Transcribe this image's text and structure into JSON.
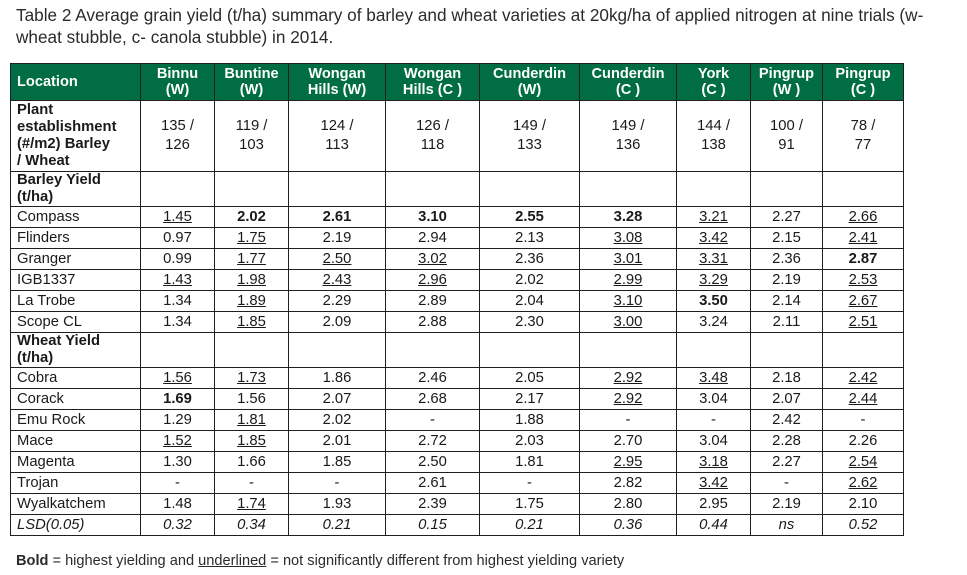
{
  "caption": "Table 2 Average grain yield (t/ha) summary of barley and wheat varieties at 20kg/ha of applied nitrogen at nine trials (w- wheat stubble, c- canola stubble) in 2014.",
  "columns": [
    {
      "line1": "Location",
      "line2": ""
    },
    {
      "line1": "Binnu",
      "line2": "(W)"
    },
    {
      "line1": "Buntine",
      "line2": "(W)"
    },
    {
      "line1": "Wongan",
      "line2": "Hills (W)"
    },
    {
      "line1": "Wongan",
      "line2": "Hills (C )"
    },
    {
      "line1": "Cunderdin",
      "line2": "(W)"
    },
    {
      "line1": "Cunderdin",
      "line2": "(C )"
    },
    {
      "line1": "York",
      "line2": "(C )"
    },
    {
      "line1": "Pingrup",
      "line2": "(W )"
    },
    {
      "line1": "Pingrup",
      "line2": "(C )"
    }
  ],
  "plant": {
    "label_lines": [
      "Plant",
      "establishment",
      "(#/m2) Barley",
      "/ Wheat"
    ],
    "values": [
      [
        "135 /",
        "126"
      ],
      [
        "119 /",
        "103"
      ],
      [
        "124 /",
        "113"
      ],
      [
        "126 /",
        "118"
      ],
      [
        "149 /",
        "133"
      ],
      [
        "149 /",
        "136"
      ],
      [
        "144 /",
        "138"
      ],
      [
        "100 /",
        "91"
      ],
      [
        "78 /",
        "77"
      ]
    ]
  },
  "barley_section": [
    "Barley Yield",
    "(t/ha)"
  ],
  "barley_rows": [
    {
      "name": "Compass",
      "cells": [
        {
          "v": "1.45",
          "s": "u"
        },
        {
          "v": "2.02",
          "s": "b"
        },
        {
          "v": "2.61",
          "s": "b"
        },
        {
          "v": "3.10",
          "s": "b"
        },
        {
          "v": "2.55",
          "s": "b"
        },
        {
          "v": "3.28",
          "s": "b"
        },
        {
          "v": "3.21",
          "s": "u"
        },
        {
          "v": "2.27",
          "s": ""
        },
        {
          "v": "2.66",
          "s": "u"
        }
      ]
    },
    {
      "name": "Flinders",
      "cells": [
        {
          "v": "0.97",
          "s": ""
        },
        {
          "v": "1.75",
          "s": "u"
        },
        {
          "v": "2.19",
          "s": ""
        },
        {
          "v": "2.94",
          "s": ""
        },
        {
          "v": "2.13",
          "s": ""
        },
        {
          "v": "3.08",
          "s": "u"
        },
        {
          "v": "3.42",
          "s": "u"
        },
        {
          "v": "2.15",
          "s": ""
        },
        {
          "v": "2.41",
          "s": "u"
        }
      ]
    },
    {
      "name": "Granger",
      "cells": [
        {
          "v": "0.99",
          "s": ""
        },
        {
          "v": "1.77",
          "s": "u"
        },
        {
          "v": "2.50",
          "s": "u"
        },
        {
          "v": "3.02",
          "s": "u"
        },
        {
          "v": "2.36",
          "s": ""
        },
        {
          "v": "3.01",
          "s": "u"
        },
        {
          "v": "3.31",
          "s": "u"
        },
        {
          "v": "2.36",
          "s": ""
        },
        {
          "v": "2.87",
          "s": "b"
        }
      ]
    },
    {
      "name": "IGB1337",
      "cells": [
        {
          "v": "1.43",
          "s": "u"
        },
        {
          "v": "1.98",
          "s": "u"
        },
        {
          "v": "2.43",
          "s": "u"
        },
        {
          "v": "2.96",
          "s": "u"
        },
        {
          "v": "2.02",
          "s": ""
        },
        {
          "v": "2.99",
          "s": "u"
        },
        {
          "v": "3.29",
          "s": "u"
        },
        {
          "v": "2.19",
          "s": ""
        },
        {
          "v": "2.53",
          "s": "u"
        }
      ]
    },
    {
      "name": "La Trobe",
      "cells": [
        {
          "v": "1.34",
          "s": ""
        },
        {
          "v": "1.89",
          "s": "u"
        },
        {
          "v": "2.29",
          "s": ""
        },
        {
          "v": "2.89",
          "s": ""
        },
        {
          "v": "2.04",
          "s": ""
        },
        {
          "v": "3.10",
          "s": "u"
        },
        {
          "v": "3.50",
          "s": "b"
        },
        {
          "v": "2.14",
          "s": ""
        },
        {
          "v": "2.67",
          "s": "u"
        }
      ]
    },
    {
      "name": "Scope CL",
      "cells": [
        {
          "v": "1.34",
          "s": ""
        },
        {
          "v": "1.85",
          "s": "u"
        },
        {
          "v": "2.09",
          "s": ""
        },
        {
          "v": "2.88",
          "s": ""
        },
        {
          "v": "2.30",
          "s": ""
        },
        {
          "v": "3.00",
          "s": "u"
        },
        {
          "v": "3.24",
          "s": ""
        },
        {
          "v": "2.11",
          "s": ""
        },
        {
          "v": "2.51",
          "s": "u"
        }
      ]
    }
  ],
  "wheat_section": [
    "Wheat Yield",
    "(t/ha)"
  ],
  "wheat_rows": [
    {
      "name": "Cobra",
      "cells": [
        {
          "v": "1.56",
          "s": "u"
        },
        {
          "v": "1.73",
          "s": "u"
        },
        {
          "v": "1.86",
          "s": ""
        },
        {
          "v": "2.46",
          "s": ""
        },
        {
          "v": "2.05",
          "s": ""
        },
        {
          "v": "2.92",
          "s": "u"
        },
        {
          "v": "3.48",
          "s": "u"
        },
        {
          "v": "2.18",
          "s": ""
        },
        {
          "v": "2.42",
          "s": "u"
        }
      ]
    },
    {
      "name": "Corack",
      "cells": [
        {
          "v": "1.69",
          "s": "b"
        },
        {
          "v": "1.56",
          "s": ""
        },
        {
          "v": "2.07",
          "s": ""
        },
        {
          "v": "2.68",
          "s": ""
        },
        {
          "v": "2.17",
          "s": ""
        },
        {
          "v": "2.92",
          "s": "u"
        },
        {
          "v": "3.04",
          "s": ""
        },
        {
          "v": "2.07",
          "s": ""
        },
        {
          "v": "2.44",
          "s": "u"
        }
      ]
    },
    {
      "name": "Emu Rock",
      "cells": [
        {
          "v": "1.29",
          "s": ""
        },
        {
          "v": "1.81",
          "s": "u"
        },
        {
          "v": "2.02",
          "s": ""
        },
        {
          "v": "-",
          "s": ""
        },
        {
          "v": "1.88",
          "s": ""
        },
        {
          "v": "-",
          "s": ""
        },
        {
          "v": "-",
          "s": ""
        },
        {
          "v": "2.42",
          "s": ""
        },
        {
          "v": "-",
          "s": ""
        }
      ]
    },
    {
      "name": "Mace",
      "cells": [
        {
          "v": "1.52",
          "s": "u"
        },
        {
          "v": "1.85",
          "s": "u"
        },
        {
          "v": "2.01",
          "s": ""
        },
        {
          "v": "2.72",
          "s": ""
        },
        {
          "v": "2.03",
          "s": ""
        },
        {
          "v": "2.70",
          "s": ""
        },
        {
          "v": "3.04",
          "s": ""
        },
        {
          "v": "2.28",
          "s": ""
        },
        {
          "v": "2.26",
          "s": ""
        }
      ]
    },
    {
      "name": "Magenta",
      "cells": [
        {
          "v": "1.30",
          "s": ""
        },
        {
          "v": "1.66",
          "s": ""
        },
        {
          "v": "1.85",
          "s": ""
        },
        {
          "v": "2.50",
          "s": ""
        },
        {
          "v": "1.81",
          "s": ""
        },
        {
          "v": "2.95",
          "s": "u"
        },
        {
          "v": "3.18",
          "s": "u"
        },
        {
          "v": "2.27",
          "s": ""
        },
        {
          "v": "2.54",
          "s": "u"
        }
      ]
    },
    {
      "name": "Trojan",
      "cells": [
        {
          "v": "-",
          "s": ""
        },
        {
          "v": "-",
          "s": ""
        },
        {
          "v": "-",
          "s": ""
        },
        {
          "v": "2.61",
          "s": ""
        },
        {
          "v": "-",
          "s": ""
        },
        {
          "v": "2.82",
          "s": ""
        },
        {
          "v": "3.42",
          "s": "u"
        },
        {
          "v": "-",
          "s": ""
        },
        {
          "v": "2.62",
          "s": "u"
        }
      ]
    },
    {
      "name": "Wyalkatchem",
      "cells": [
        {
          "v": "1.48",
          "s": ""
        },
        {
          "v": "1.74",
          "s": "u"
        },
        {
          "v": "1.93",
          "s": ""
        },
        {
          "v": "2.39",
          "s": ""
        },
        {
          "v": "1.75",
          "s": ""
        },
        {
          "v": "2.80",
          "s": ""
        },
        {
          "v": "2.95",
          "s": ""
        },
        {
          "v": "2.19",
          "s": ""
        },
        {
          "v": "2.10",
          "s": ""
        }
      ]
    }
  ],
  "lsd": {
    "name": "LSD(0.05)",
    "values": [
      "0.32",
      "0.34",
      "0.21",
      "0.15",
      "0.21",
      "0.36",
      "0.44",
      "ns",
      "0.52"
    ]
  },
  "footnote": {
    "bold_word": "Bold",
    "mid": " = highest yielding and ",
    "underlined_word": "underlined",
    "rest": " = not significantly different from highest yielding variety"
  },
  "colors": {
    "header_bg": "#006d45",
    "header_text": "#ffffff"
  }
}
